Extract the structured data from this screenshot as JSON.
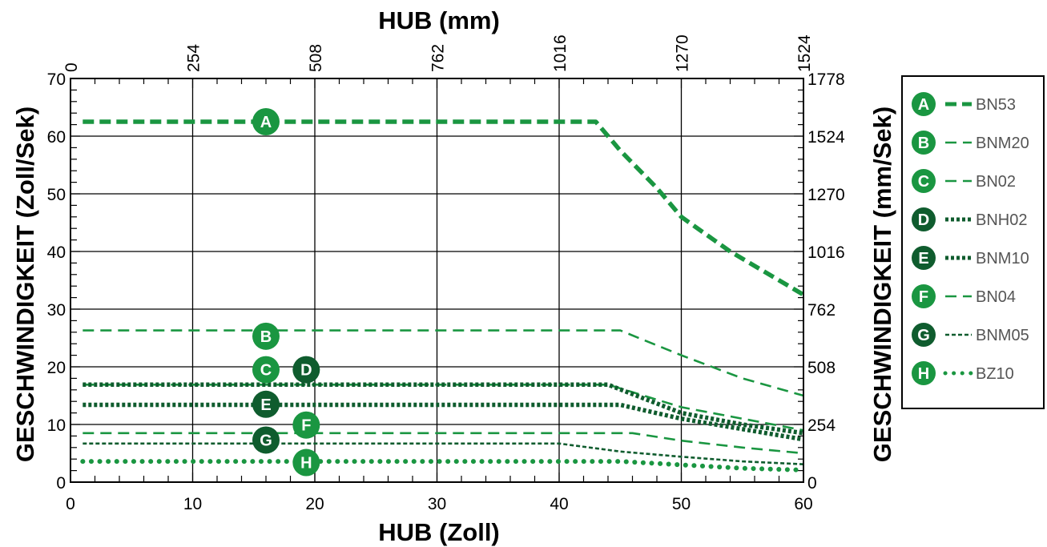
{
  "chart_data": {
    "type": "line",
    "xlabel": "HUB (Zoll)",
    "x2label": "HUB (mm)",
    "ylabel": "GESCHWINDIGKEIT (Zoll/Sek)",
    "y2label": "GESCHWINDIGKEIT (mm/Sek)",
    "xlim": [
      0,
      60
    ],
    "ylim": [
      0,
      70
    ],
    "x_ticks": [
      "0",
      "10",
      "20",
      "30",
      "40",
      "50",
      "60"
    ],
    "y_ticks": [
      "0",
      "10",
      "20",
      "30",
      "40",
      "50",
      "60",
      "70"
    ],
    "x2_ticks": [
      "0",
      "254",
      "508",
      "762",
      "1016",
      "1270",
      "1524"
    ],
    "y2_ticks": [
      "0",
      "254",
      "508",
      "762",
      "1016",
      "1270",
      "1524",
      "1778"
    ],
    "grid": true,
    "legend_position": "right",
    "series": [
      {
        "name": "BN53",
        "badge": "A",
        "color": "#1a9641",
        "style": "dash-thick",
        "x": [
          1,
          43,
          45,
          48,
          50,
          54,
          58,
          60
        ],
        "y": [
          62.5,
          62.5,
          57.5,
          51,
          46,
          40,
          35,
          32.5
        ]
      },
      {
        "name": "BNM20",
        "badge": "B",
        "color": "#1a9641",
        "style": "dash-thin",
        "x": [
          1,
          45,
          50,
          55,
          60
        ],
        "y": [
          26.3,
          26.3,
          22,
          18,
          15
        ]
      },
      {
        "name": "BN02",
        "badge": "C",
        "color": "#1a9641",
        "style": "dash-thin",
        "x": [
          1,
          44,
          50,
          55,
          60
        ],
        "y": [
          16.9,
          16.9,
          13,
          11,
          9
        ]
      },
      {
        "name": "BNH02",
        "badge": "D",
        "color": "#0f5c2e",
        "style": "dot-thick",
        "x": [
          1,
          44,
          50,
          55,
          60
        ],
        "y": [
          16.9,
          16.9,
          12,
          10,
          8.5
        ]
      },
      {
        "name": "BNM10",
        "badge": "E",
        "color": "#0f5c2e",
        "style": "dot-thick",
        "x": [
          1,
          45,
          50,
          55,
          60
        ],
        "y": [
          13.4,
          13.4,
          11,
          9.2,
          7.4
        ]
      },
      {
        "name": "BN04",
        "badge": "F",
        "color": "#1a9641",
        "style": "dash-thin",
        "x": [
          1,
          46,
          50,
          55,
          60
        ],
        "y": [
          8.5,
          8.5,
          7.2,
          6,
          5
        ]
      },
      {
        "name": "BNM05",
        "badge": "G",
        "color": "#0f5c2e",
        "style": "dot-thin",
        "x": [
          1,
          40,
          45,
          50,
          55,
          60
        ],
        "y": [
          6.7,
          6.7,
          5.3,
          4.4,
          3.6,
          3.1
        ]
      },
      {
        "name": "BZ10",
        "badge": "H",
        "color": "#1a9641",
        "style": "dotted-round",
        "x": [
          1,
          45,
          50,
          55,
          60
        ],
        "y": [
          3.6,
          3.6,
          3.0,
          2.4,
          2.1
        ]
      }
    ],
    "annotations": [
      {
        "text": "A",
        "color": "#1a9641",
        "x": 16,
        "y": 62.5
      },
      {
        "text": "B",
        "color": "#1a9641",
        "x": 16,
        "y": 25.3
      },
      {
        "text": "C",
        "color": "#1a9641",
        "x": 16,
        "y": 19.5
      },
      {
        "text": "D",
        "color": "#0f5c2e",
        "x": 19.3,
        "y": 19.5
      },
      {
        "text": "E",
        "color": "#0f5c2e",
        "x": 16,
        "y": 13.5
      },
      {
        "text": "F",
        "color": "#1a9641",
        "x": 19.3,
        "y": 9.9
      },
      {
        "text": "G",
        "color": "#0f5c2e",
        "x": 16,
        "y": 7.3
      },
      {
        "text": "H",
        "color": "#1a9641",
        "x": 19.3,
        "y": 3.4
      }
    ]
  }
}
